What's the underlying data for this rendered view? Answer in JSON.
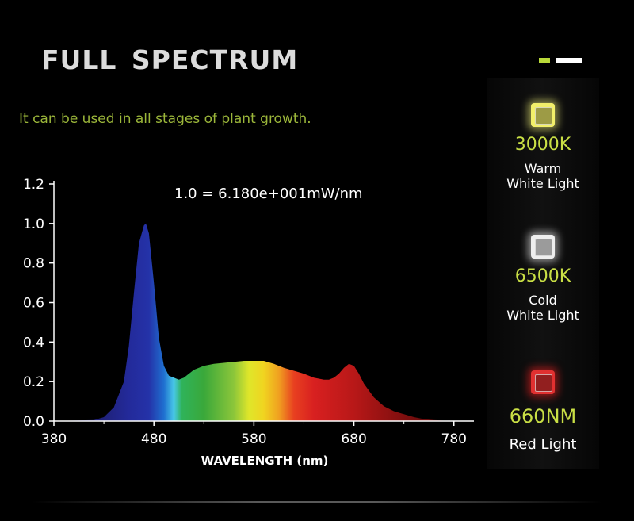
{
  "header": {
    "title": "FULL  SPECTRUM",
    "subtitle": "It can be used in all stages of plant growth."
  },
  "accent_colors": {
    "green": "#b9d93a",
    "white": "#ffffff",
    "label_yellow": "#c9df45"
  },
  "legend_items": [
    {
      "value": "3000K",
      "line1": "Warm",
      "line2": "White Light",
      "chip_color": "#f2ef6a",
      "glow_color": "#ffff80",
      "icon": "led-chip-icon"
    },
    {
      "value": "6500K",
      "line1": "Cold",
      "line2": "White Light",
      "chip_color": "#eeeeee",
      "glow_color": "#ffffff",
      "icon": "led-chip-icon"
    },
    {
      "value": "660NM",
      "line1": "Red Light",
      "line2": "",
      "chip_color": "#e03030",
      "glow_color": "#ff2020",
      "icon": "led-chip-icon"
    }
  ],
  "chart_data": {
    "type": "area",
    "title": "",
    "xlabel": "WAVELENGTH (nm)",
    "ylabel": "",
    "annotation": "1.0 = 6.180e+001mW/nm",
    "xlim": [
      380,
      800
    ],
    "ylim": [
      0,
      1.2
    ],
    "xticks": [
      380,
      480,
      580,
      680,
      780
    ],
    "yticks": [
      "0.0",
      "0.2",
      "0.4",
      "0.6",
      "0.8",
      "1.0",
      "1.2"
    ],
    "x": [
      380,
      420,
      430,
      440,
      450,
      455,
      460,
      465,
      470,
      472,
      475,
      480,
      485,
      490,
      495,
      500,
      505,
      510,
      520,
      530,
      540,
      550,
      560,
      570,
      580,
      590,
      600,
      610,
      620,
      630,
      640,
      650,
      655,
      660,
      665,
      670,
      675,
      680,
      685,
      690,
      700,
      710,
      720,
      730,
      740,
      750,
      760,
      770,
      780
    ],
    "values": [
      0,
      0.005,
      0.02,
      0.07,
      0.2,
      0.38,
      0.65,
      0.9,
      0.99,
      1.0,
      0.95,
      0.7,
      0.42,
      0.28,
      0.23,
      0.22,
      0.21,
      0.22,
      0.26,
      0.28,
      0.29,
      0.295,
      0.3,
      0.305,
      0.305,
      0.305,
      0.29,
      0.27,
      0.255,
      0.24,
      0.22,
      0.21,
      0.21,
      0.22,
      0.24,
      0.27,
      0.29,
      0.28,
      0.24,
      0.19,
      0.12,
      0.075,
      0.05,
      0.035,
      0.02,
      0.01,
      0.005,
      0.002,
      0
    ]
  }
}
